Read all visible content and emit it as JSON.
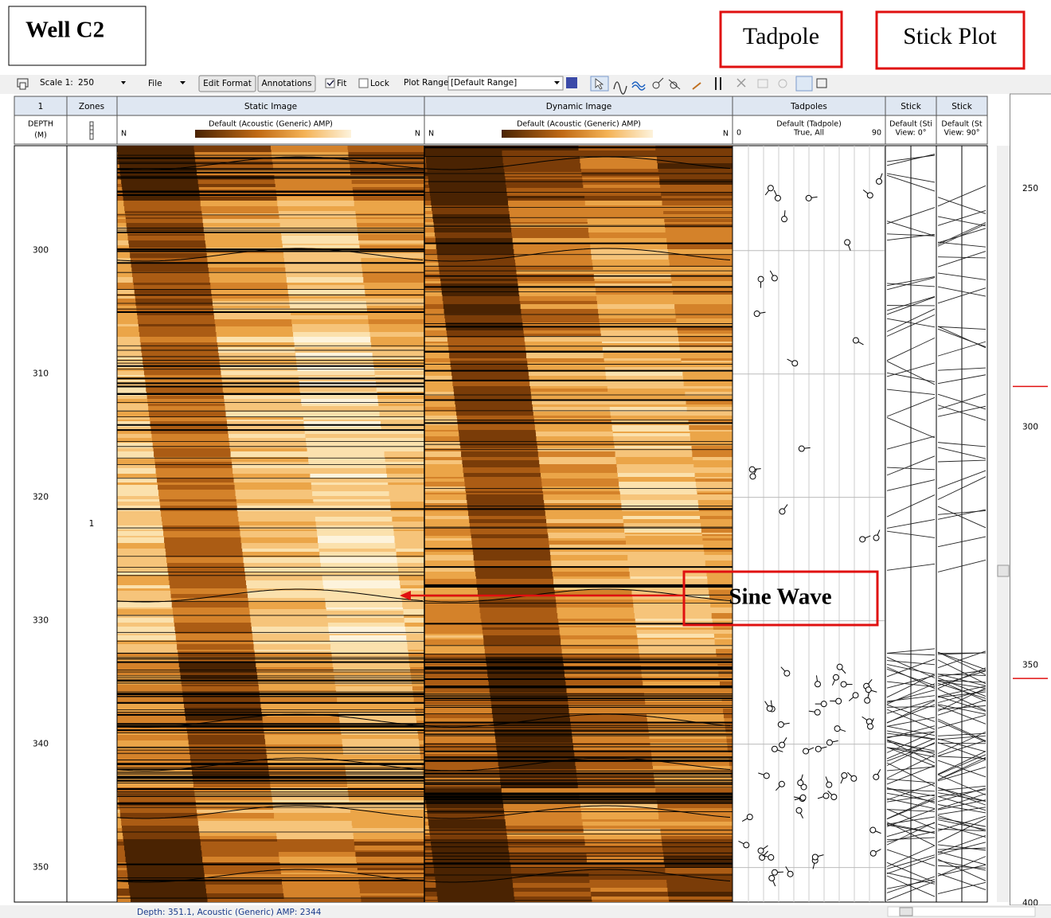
{
  "annotations": {
    "well": "Well C2",
    "tadpole": "Tadpole",
    "stick_plot": "Stick Plot",
    "sine_wave": "Sine Wave"
  },
  "toolbar": {
    "scale_label": "Scale 1:",
    "scale": "250",
    "file": "File",
    "edit_format": "Edit Format",
    "annotations": "Annotations",
    "fit": "Fit",
    "lock": "Lock",
    "plot_range_label": "Plot Range",
    "plot_range": "[Default Range]"
  },
  "columns": {
    "depth": {
      "title": "1",
      "sub1": "DEPTH",
      "sub2": "(M)"
    },
    "zones": {
      "title": "Zones"
    },
    "static": {
      "title": "Static Image",
      "sub": "Default (Acoustic (Generic) AMP)",
      "left": "N",
      "right": "N"
    },
    "dynamic": {
      "title": "Dynamic Image",
      "sub": "Default (Acoustic (Generic) AMP)",
      "left": "N",
      "right": "N"
    },
    "tadpoles": {
      "title": "Tadpoles",
      "sub1": "Default (Tadpole)",
      "sub2": "True, All",
      "left": "0",
      "right": "90"
    },
    "stick1": {
      "title": "Stick",
      "sub1": "Default (Sti",
      "sub2": "View: 0°"
    },
    "stick2": {
      "title": "Stick",
      "sub1": "Default (St",
      "sub2": "View: 90°"
    }
  },
  "depth_track": {
    "ylim": [
      291.5,
      352.8
    ],
    "ticks": [
      300,
      310,
      320,
      330,
      340,
      350
    ]
  },
  "zones": {
    "label": "1"
  },
  "overview": {
    "ylim": [
      230.1,
      400.4
    ],
    "ticks": [
      250,
      300,
      350,
      400
    ],
    "range_markers": [
      291.5,
      352.8
    ]
  },
  "status": "Depth: 351.1,  Acoustic (Generic) AMP: 2344"
}
